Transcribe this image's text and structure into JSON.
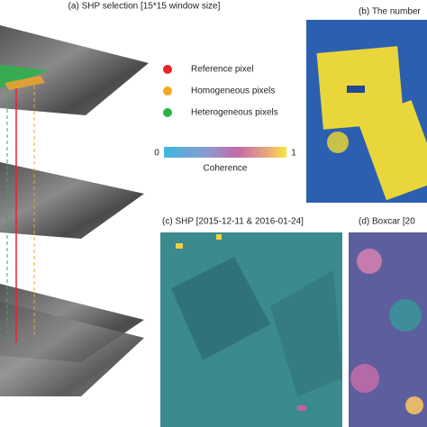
{
  "panel_a": {
    "title": "(a) SHP selection [15*15 window size]",
    "legend": [
      {
        "label": "Reference pixel",
        "color": "#e8232a"
      },
      {
        "label": "Homogeneous pixels",
        "color": "#f5a623"
      },
      {
        "label": "Heterogeneous pixels",
        "color": "#2bb34a"
      }
    ]
  },
  "colorbar": {
    "label": "Coherence",
    "ticks": [
      0,
      1
    ]
  },
  "panel_b": {
    "title": "(b) The number"
  },
  "panel_c": {
    "title": "(c) SHP [2015-12-11 & 2016-01-24]"
  },
  "panel_d": {
    "title": "(d) Boxcar [20"
  }
}
